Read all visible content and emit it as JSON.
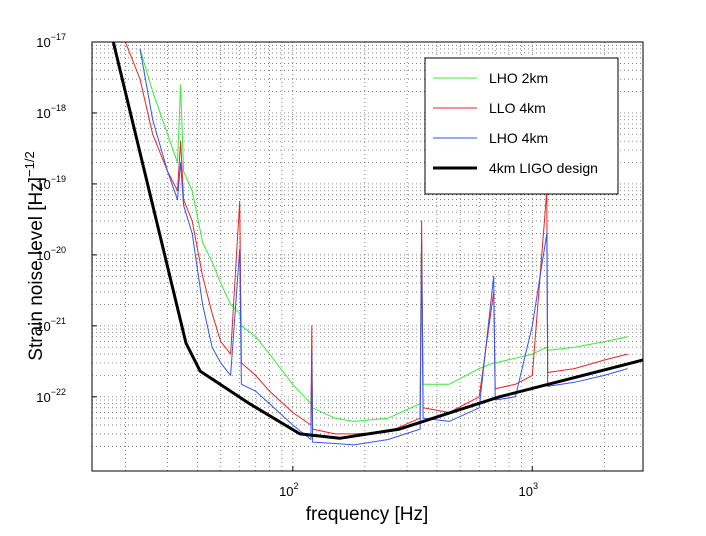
{
  "chart_data": {
    "type": "line",
    "xlabel": "frequency [Hz]",
    "ylabel": "Strain noise level [Hz]",
    "ylabel_sup": "−1/2",
    "xlog": true,
    "ylog": true,
    "grid": true,
    "legend": "upper right",
    "xlim": [
      14.5,
      2900
    ],
    "ylim": [
      9e-24,
      1e-17
    ],
    "xticks": [
      {
        "value": 100,
        "label": "10",
        "sup": "2"
      },
      {
        "value": 1000,
        "label": "10",
        "sup": "3"
      }
    ],
    "yticks": [
      {
        "value": 1e-17,
        "label": "10",
        "sup": "−17"
      },
      {
        "value": 1e-18,
        "label": "10",
        "sup": "−18"
      },
      {
        "value": 1e-19,
        "label": "10",
        "sup": "−19"
      },
      {
        "value": 1e-20,
        "label": "10",
        "sup": "−20"
      },
      {
        "value": 1e-21,
        "label": "10",
        "sup": "−21"
      },
      {
        "value": 1e-22,
        "label": "10",
        "sup": "−22"
      }
    ],
    "xminorticks": [
      20,
      30,
      40,
      50,
      60,
      70,
      80,
      90,
      200,
      300,
      400,
      500,
      600,
      700,
      800,
      900,
      2000
    ],
    "yminorticks": [
      2e-23,
      3e-23,
      4e-23,
      5e-23,
      6e-23,
      7e-23,
      8e-23,
      9e-23,
      2e-22,
      3e-22,
      4e-22,
      5e-22,
      6e-22,
      7e-22,
      8e-22,
      9e-22,
      2e-21,
      3e-21,
      4e-21,
      5e-21,
      6e-21,
      7e-21,
      8e-21,
      9e-21,
      2e-20,
      3e-20,
      4e-20,
      5e-20,
      6e-20,
      7e-20,
      8e-20,
      9e-20,
      2e-19,
      3e-19,
      4e-19,
      5e-19,
      6e-19,
      7e-19,
      8e-19,
      9e-19,
      2e-18,
      3e-18,
      4e-18,
      5e-18,
      6e-18,
      7e-18,
      8e-18,
      9e-18
    ],
    "series": [
      {
        "name": "LHO 2km",
        "color": "#33ee33",
        "width": 1,
        "x": [
          16,
          18,
          20,
          23,
          26,
          30,
          33,
          34,
          35,
          38,
          42,
          46,
          50,
          55,
          60,
          61,
          70,
          80,
          100,
          119,
          120,
          121,
          150,
          180,
          250,
          340,
          345,
          350,
          450,
          600,
          690,
          700,
          850,
          1000,
          1150,
          1160,
          1500,
          2000,
          2500
        ],
        "values": [
          null,
          null,
          null,
          8e-18,
          2e-18,
          5e-19,
          2e-19,
          2.5e-18,
          1.5e-19,
          8e-20,
          1.5e-20,
          8e-21,
          4e-21,
          2e-21,
          1.5e-21,
          1e-21,
          7e-22,
          4e-22,
          1.5e-22,
          8e-23,
          2e-22,
          7e-23,
          5e-23,
          4.5e-23,
          5e-23,
          8e-23,
          2e-20,
          1.5e-22,
          1.5e-22,
          2.5e-22,
          3e-22,
          3e-22,
          3.5e-22,
          4e-22,
          5e-22,
          4.5e-22,
          5e-22,
          6e-22,
          7e-22
        ]
      },
      {
        "name": "LLO 4km",
        "color": "#ee2222",
        "width": 1,
        "x": [
          16,
          18,
          20,
          23,
          26,
          30,
          33,
          34,
          35,
          38,
          42,
          46,
          50,
          55,
          60,
          61,
          70,
          80,
          100,
          119,
          120,
          121,
          150,
          180,
          250,
          340,
          345,
          350,
          450,
          600,
          690,
          700,
          850,
          1000,
          1150,
          1160,
          1500,
          2000,
          2500
        ],
        "values": [
          null,
          null,
          1e-17,
          3e-18,
          5e-19,
          1.5e-19,
          8e-20,
          4e-19,
          6e-20,
          3e-20,
          5e-21,
          1.5e-21,
          6e-22,
          4e-22,
          5.7e-20,
          3e-22,
          2e-22,
          1.2e-22,
          6e-23,
          4e-23,
          1e-21,
          3.5e-23,
          3e-23,
          3e-23,
          3.2e-23,
          5e-23,
          3e-20,
          7e-23,
          6e-23,
          1e-22,
          3e-21,
          1.3e-22,
          1.5e-22,
          2e-22,
          8e-20,
          2.2e-22,
          2.5e-22,
          3.3e-22,
          4e-22
        ]
      },
      {
        "name": "LHO 4km",
        "color": "#3355ee",
        "width": 1,
        "x": [
          16,
          18,
          20,
          23,
          26,
          30,
          33,
          34,
          35,
          38,
          42,
          46,
          50,
          55,
          60,
          61,
          70,
          80,
          100,
          119,
          120,
          121,
          150,
          180,
          250,
          340,
          345,
          350,
          450,
          600,
          690,
          700,
          850,
          1000,
          1150,
          1160,
          1500,
          2000,
          2500
        ],
        "values": [
          null,
          null,
          null,
          8e-18,
          8e-19,
          1.5e-19,
          6e-20,
          2e-19,
          5e-20,
          2e-20,
          2e-21,
          5e-22,
          3e-22,
          2e-22,
          1.2e-20,
          1.5e-22,
          1.2e-22,
          8e-23,
          4e-23,
          2.5e-23,
          4e-22,
          2.3e-23,
          2.2e-23,
          2.1e-23,
          2.5e-23,
          3.5e-23,
          1.5e-20,
          5e-23,
          4.5e-23,
          7e-23,
          5e-21,
          9e-23,
          1e-22,
          1e-21,
          2e-20,
          1.4e-22,
          1.6e-22,
          2e-22,
          2.5e-22
        ]
      },
      {
        "name": "4km LIGO design",
        "color": "#000000",
        "width": 3,
        "x": [
          17.8,
          35.8,
          41,
          66,
          107,
          157,
          279,
          730,
          2900
        ],
        "values": [
          1e-17,
          5.7e-22,
          2.3e-22,
          8e-23,
          3e-23,
          2.6e-23,
          3.5e-23,
          1e-22,
          3.3e-22
        ]
      }
    ]
  }
}
